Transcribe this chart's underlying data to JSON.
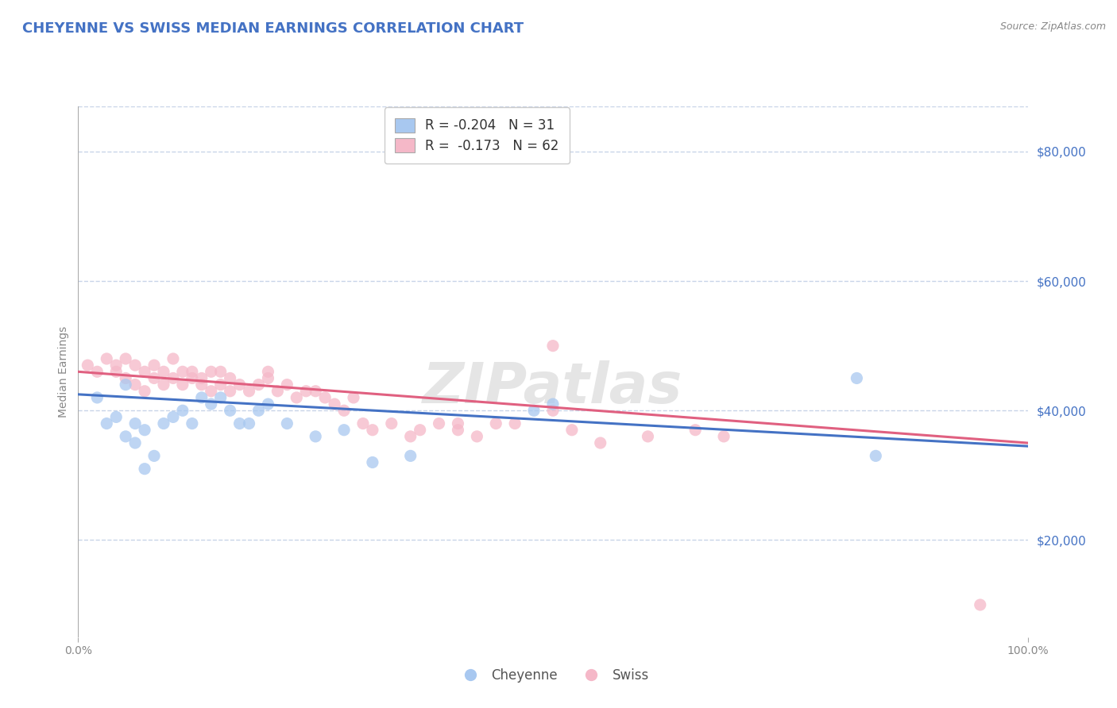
{
  "title": "CHEYENNE VS SWISS MEDIAN EARNINGS CORRELATION CHART",
  "source_text": "Source: ZipAtlas.com",
  "ylabel": "Median Earnings",
  "xlim": [
    0.0,
    1.0
  ],
  "ylim": [
    5000,
    87000
  ],
  "yticks": [
    20000,
    40000,
    60000,
    80000
  ],
  "ytick_labels": [
    "$20,000",
    "$40,000",
    "$60,000",
    "$80,000"
  ],
  "xtick_labels": [
    "0.0%",
    "100.0%"
  ],
  "legend_label1": "Cheyenne",
  "legend_label2": "Swiss",
  "r1": -0.204,
  "n1": 31,
  "r2": -0.173,
  "n2": 62,
  "color_cheyenne": "#a8c8f0",
  "color_swiss": "#f5b8c8",
  "line_color_cheyenne": "#4472c4",
  "line_color_swiss": "#e06080",
  "watermark_text": "ZIPatlas",
  "background_color": "#ffffff",
  "grid_color": "#c8d4e8",
  "title_color": "#4472c4",
  "cheyenne_x": [
    0.02,
    0.03,
    0.04,
    0.05,
    0.05,
    0.06,
    0.06,
    0.07,
    0.07,
    0.08,
    0.09,
    0.1,
    0.11,
    0.12,
    0.13,
    0.14,
    0.15,
    0.16,
    0.17,
    0.18,
    0.19,
    0.2,
    0.22,
    0.25,
    0.28,
    0.31,
    0.35,
    0.48,
    0.5,
    0.82,
    0.84
  ],
  "cheyenne_y": [
    42000,
    38000,
    39000,
    36000,
    44000,
    38000,
    35000,
    31000,
    37000,
    33000,
    38000,
    39000,
    40000,
    38000,
    42000,
    41000,
    42000,
    40000,
    38000,
    38000,
    40000,
    41000,
    38000,
    36000,
    37000,
    32000,
    33000,
    40000,
    41000,
    45000,
    33000
  ],
  "swiss_x": [
    0.01,
    0.02,
    0.03,
    0.04,
    0.04,
    0.05,
    0.05,
    0.06,
    0.06,
    0.07,
    0.07,
    0.08,
    0.08,
    0.09,
    0.09,
    0.1,
    0.1,
    0.11,
    0.11,
    0.12,
    0.12,
    0.13,
    0.13,
    0.14,
    0.14,
    0.15,
    0.15,
    0.16,
    0.16,
    0.17,
    0.18,
    0.19,
    0.2,
    0.2,
    0.21,
    0.22,
    0.23,
    0.24,
    0.25,
    0.26,
    0.27,
    0.28,
    0.29,
    0.3,
    0.31,
    0.33,
    0.35,
    0.36,
    0.38,
    0.4,
    0.42,
    0.44,
    0.46,
    0.5,
    0.5,
    0.52,
    0.55,
    0.6,
    0.65,
    0.68,
    0.4,
    0.95
  ],
  "swiss_y": [
    47000,
    46000,
    48000,
    47000,
    46000,
    45000,
    48000,
    47000,
    44000,
    46000,
    43000,
    45000,
    47000,
    44000,
    46000,
    45000,
    48000,
    46000,
    44000,
    45000,
    46000,
    44000,
    45000,
    46000,
    43000,
    44000,
    46000,
    45000,
    43000,
    44000,
    43000,
    44000,
    45000,
    46000,
    43000,
    44000,
    42000,
    43000,
    43000,
    42000,
    41000,
    40000,
    42000,
    38000,
    37000,
    38000,
    36000,
    37000,
    38000,
    37000,
    36000,
    38000,
    38000,
    50000,
    40000,
    37000,
    35000,
    36000,
    37000,
    36000,
    38000,
    10000
  ],
  "regression_cheyenne_x0": 0.0,
  "regression_cheyenne_y0": 42500,
  "regression_cheyenne_x1": 1.0,
  "regression_cheyenne_y1": 34500,
  "regression_swiss_x0": 0.0,
  "regression_swiss_y0": 46000,
  "regression_swiss_x1": 1.0,
  "regression_swiss_y1": 35000
}
